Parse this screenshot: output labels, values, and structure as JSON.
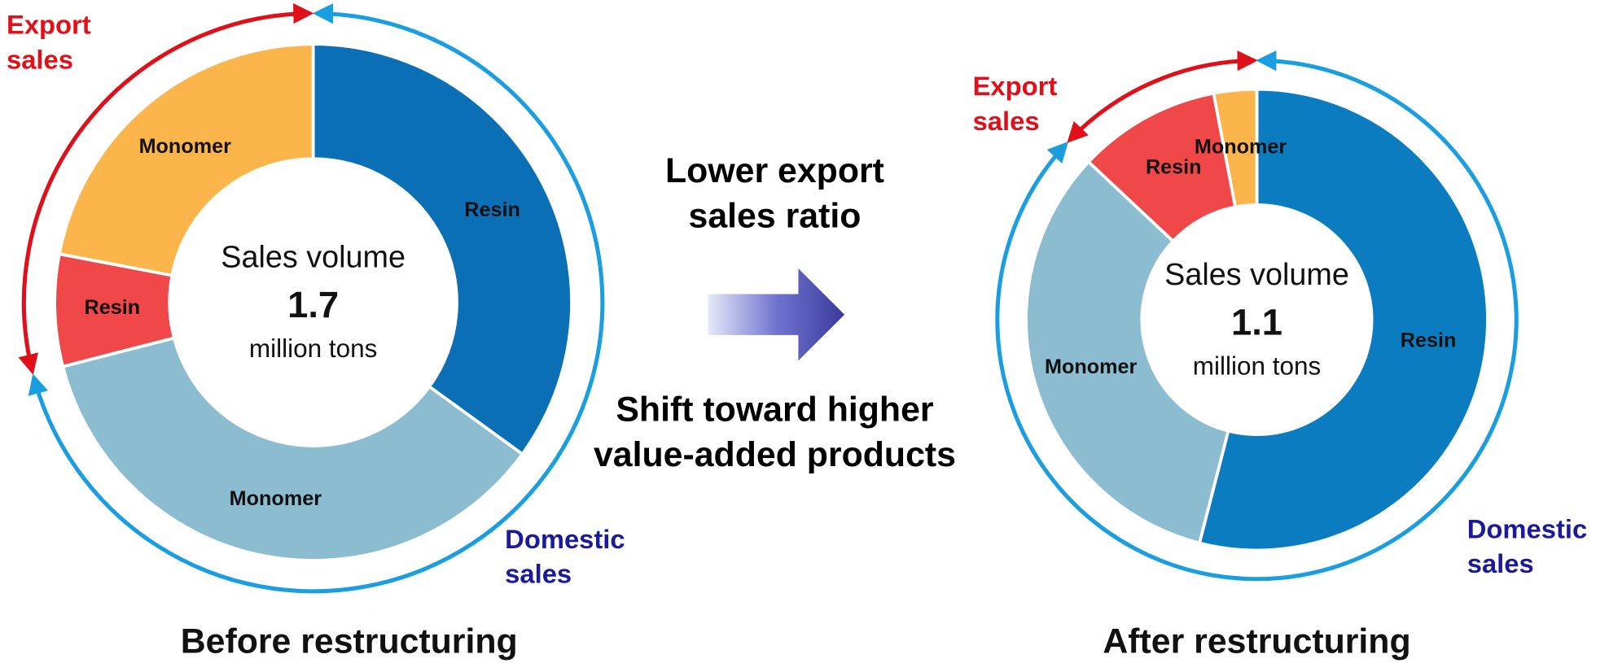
{
  "chart_data": [
    {
      "type": "donut",
      "title": "Before restructuring",
      "center_label": "Sales volume",
      "center_value": 1.7,
      "center_unit": "million tons",
      "series": [
        {
          "name": "Domestic sales",
          "color": "#1a9ee0",
          "categories": [
            "Resin",
            "Monomer"
          ],
          "values": [
            35,
            36
          ],
          "colors": [
            "#0a6fb5",
            "#8cbcd0"
          ]
        },
        {
          "name": "Export sales",
          "color": "#e0101a",
          "categories": [
            "Resin",
            "Monomer"
          ],
          "values": [
            7,
            22
          ],
          "colors": [
            "#f04848",
            "#fbb54a"
          ]
        }
      ]
    },
    {
      "type": "donut",
      "title": "After restructuring",
      "center_label": "Sales volume",
      "center_value": 1.1,
      "center_unit": "million tons",
      "series": [
        {
          "name": "Domestic sales",
          "color": "#1a9ee0",
          "categories": [
            "Resin",
            "Monomer"
          ],
          "values": [
            54,
            33
          ],
          "colors": [
            "#0a7cbf",
            "#8cbcd0"
          ]
        },
        {
          "name": "Export sales",
          "color": "#e0101a",
          "categories": [
            "Resin",
            "Monomer"
          ],
          "values": [
            10,
            3
          ],
          "colors": [
            "#f04848",
            "#fbb54a"
          ]
        }
      ]
    }
  ],
  "annotations": [
    "Lower export sales ratio",
    "Shift toward higher value-added products"
  ]
}
